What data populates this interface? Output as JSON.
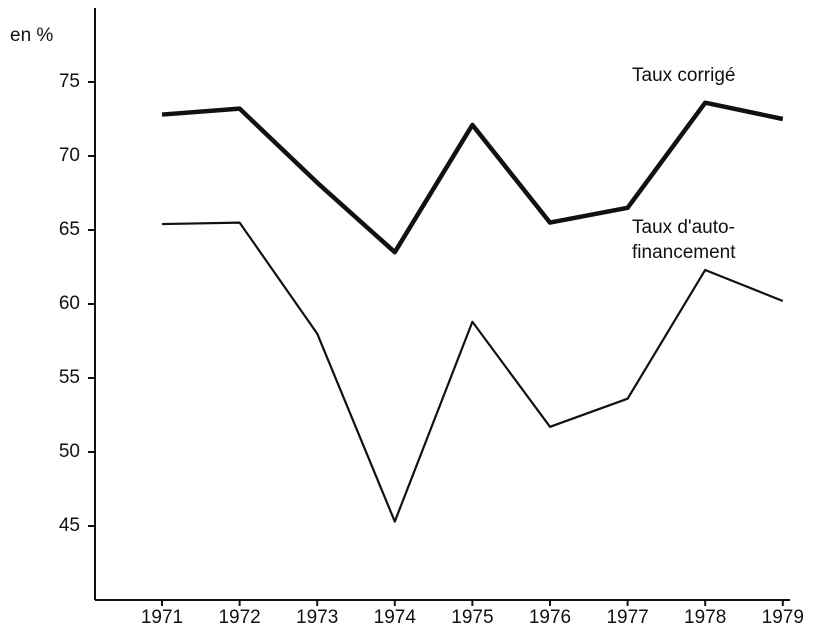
{
  "chart_data": {
    "type": "line",
    "y_label": "en %",
    "categories": [
      "1971",
      "1972",
      "1973",
      "1974",
      "1975",
      "1976",
      "1977",
      "1978",
      "1979"
    ],
    "series": [
      {
        "name": "Taux corrigé",
        "color": "#111111",
        "values": [
          72.8,
          73.2,
          68.2,
          63.5,
          72.1,
          65.5,
          66.5,
          73.6,
          72.5
        ]
      },
      {
        "name": [
          "Taux d'auto-",
          "financement"
        ],
        "color": "#111111",
        "values": [
          65.4,
          65.5,
          58.0,
          45.3,
          58.8,
          51.7,
          53.6,
          62.3,
          60.2
        ]
      }
    ],
    "ylim": [
      40,
      80
    ],
    "yticks": [
      45,
      50,
      55,
      60,
      65,
      70,
      75
    ],
    "grid": false
  }
}
